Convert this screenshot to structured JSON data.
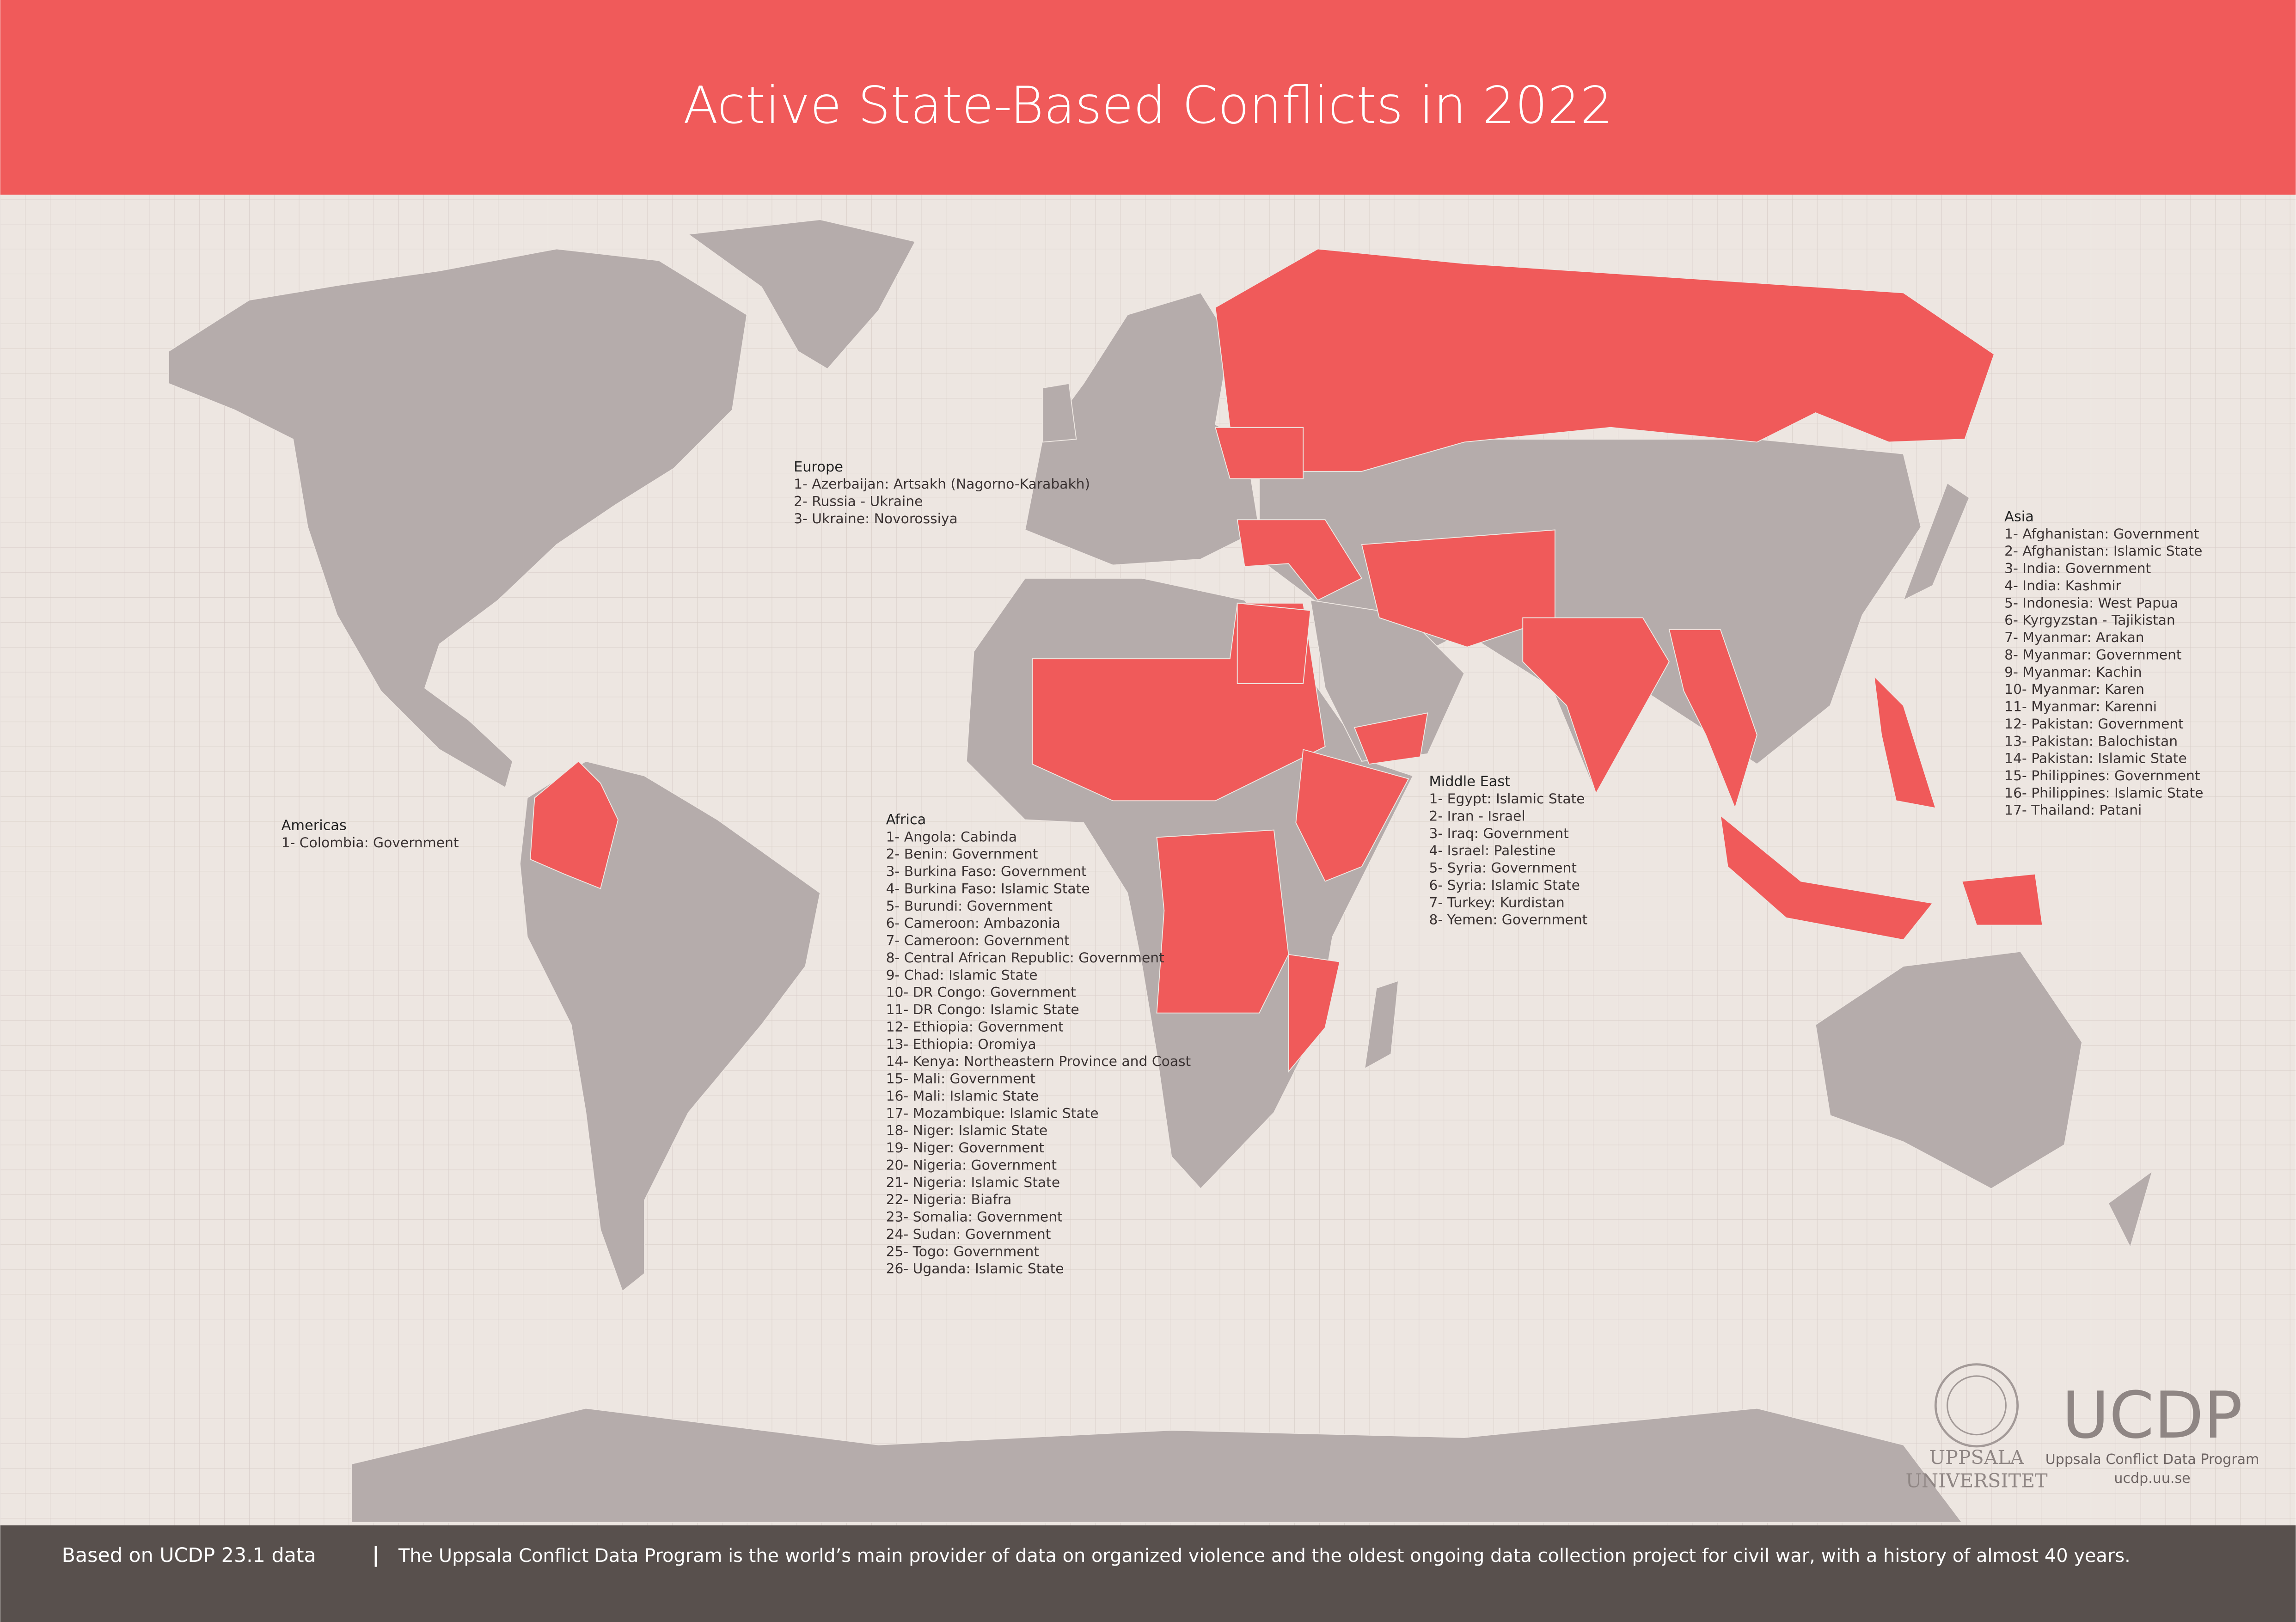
{
  "header": {
    "title": "Active State-Based Conflicts in 2022"
  },
  "legend": {
    "europe": {
      "title": "Europe",
      "items": [
        "1- Azerbaijan: Artsakh (Nagorno-Karabakh)",
        "2- Russia - Ukraine",
        "3- Ukraine: Novorossiya"
      ]
    },
    "americas": {
      "title": "Americas",
      "items": [
        "1- Colombia: Government"
      ]
    },
    "africa": {
      "title": "Africa",
      "items": [
        "1- Angola: Cabinda",
        "2- Benin: Government",
        "3- Burkina Faso: Government",
        "4- Burkina Faso: Islamic State",
        "5- Burundi: Government",
        "6- Cameroon: Ambazonia",
        "7- Cameroon: Government",
        "8- Central African Republic: Government",
        "9- Chad: Islamic State",
        "10- DR Congo: Government",
        "11- DR Congo: Islamic State",
        "12- Ethiopia: Government",
        "13- Ethiopia: Oromiya",
        "14- Kenya: Northeastern Province and Coast",
        "15- Mali: Government",
        "16- Mali: Islamic State",
        "17- Mozambique: Islamic State",
        "18- Niger: Islamic State",
        "19- Niger: Government",
        "20- Nigeria: Government",
        "21- Nigeria: Islamic State",
        "22- Nigeria: Biafra",
        "23- Somalia: Government",
        "24- Sudan: Government",
        "25- Togo: Government",
        "26- Uganda: Islamic State"
      ]
    },
    "middle_east": {
      "title": "Middle East",
      "items": [
        "1- Egypt: Islamic State",
        "2- Iran - Israel",
        "3- Iraq: Government",
        "4- Israel: Palestine",
        "5- Syria: Government",
        "6- Syria: Islamic State",
        "7- Turkey: Kurdistan",
        "8- Yemen: Government"
      ]
    },
    "asia": {
      "title": "Asia",
      "items": [
        "1- Afghanistan: Government",
        "2- Afghanistan: Islamic State",
        "3- India: Government",
        "4- India: Kashmir",
        "5- Indonesia: West Papua",
        "6- Kyrgyzstan - Tajikistan",
        "7- Myanmar: Arakan",
        "8- Myanmar: Government",
        "9- Myanmar: Kachin",
        "10- Myanmar: Karen",
        "11- Myanmar: Karenni",
        "12- Pakistan: Government",
        "13- Pakistan: Balochistan",
        "14- Pakistan: Islamic State",
        "15- Philippines: Government",
        "16- Philippines: Islamic State",
        "17- Thailand: Patani"
      ]
    }
  },
  "logos": {
    "uppsala": {
      "line1": "UPPSALA",
      "line2": "UNIVERSITET"
    },
    "ucdp": {
      "name": "UCDP",
      "subtitle": "Uppsala Conflict Data Program",
      "url": "ucdp.uu.se"
    }
  },
  "footer": {
    "source": "Based on UCDP 23.1 data",
    "separator": "|",
    "description": "The Uppsala Conflict Data Program is the world’s main provider of data on organized violence and the oldest ongoing data collection project for civil war, with a history of almost 40 years."
  }
}
